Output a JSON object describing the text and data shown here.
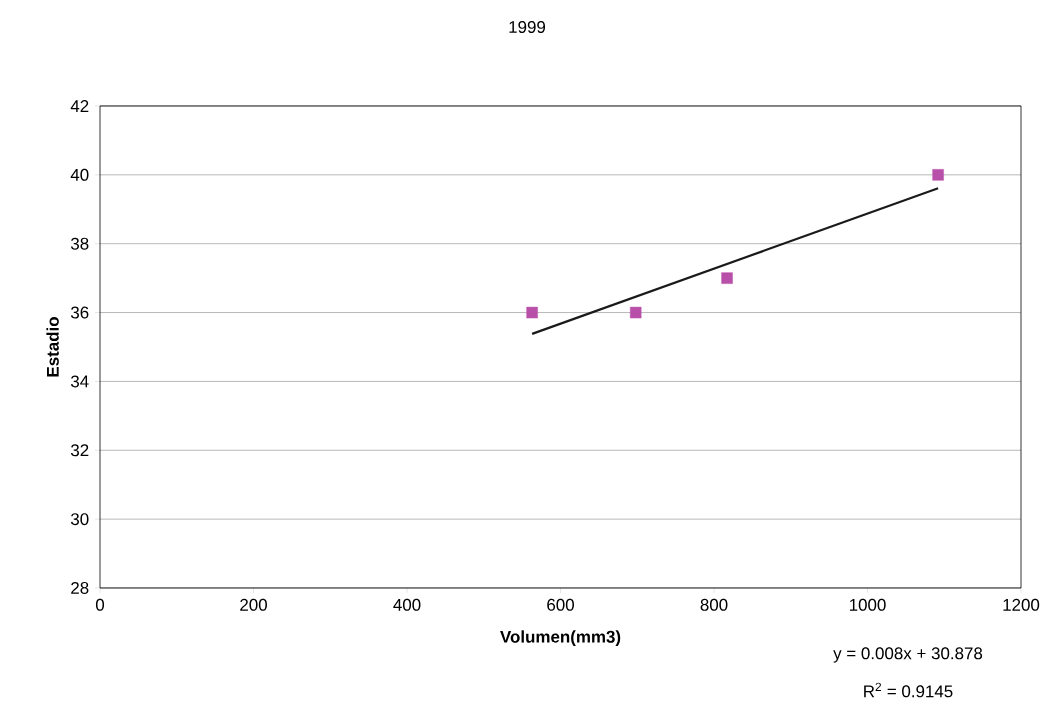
{
  "chart_data": {
    "type": "scatter",
    "title": "1999",
    "xlabel": "Volumen(mm3)",
    "ylabel": "Estadio",
    "series": [
      {
        "color": "#b84fa8",
        "x": [
          563,
          698,
          817,
          1092
        ],
        "values": [
          36,
          36,
          37,
          40
        ]
      },
      {
        "type": "line",
        "marker": "none",
        "color": "#1a1a1a",
        "x": [
          563,
          1092
        ],
        "values": [
          35.38,
          39.61
        ]
      }
    ],
    "xlim": [
      0,
      1200
    ],
    "xticks": [
      0,
      200,
      400,
      600,
      800,
      1000,
      1200
    ],
    "ylim": [
      28,
      42
    ],
    "yticks": [
      28,
      30,
      32,
      34,
      36,
      38,
      40,
      42
    ],
    "grid": "y",
    "marker": "square",
    "annotations": [
      "y = 0.008x + 30.878",
      "R$^{2}$ = 0.9145"
    ]
  }
}
